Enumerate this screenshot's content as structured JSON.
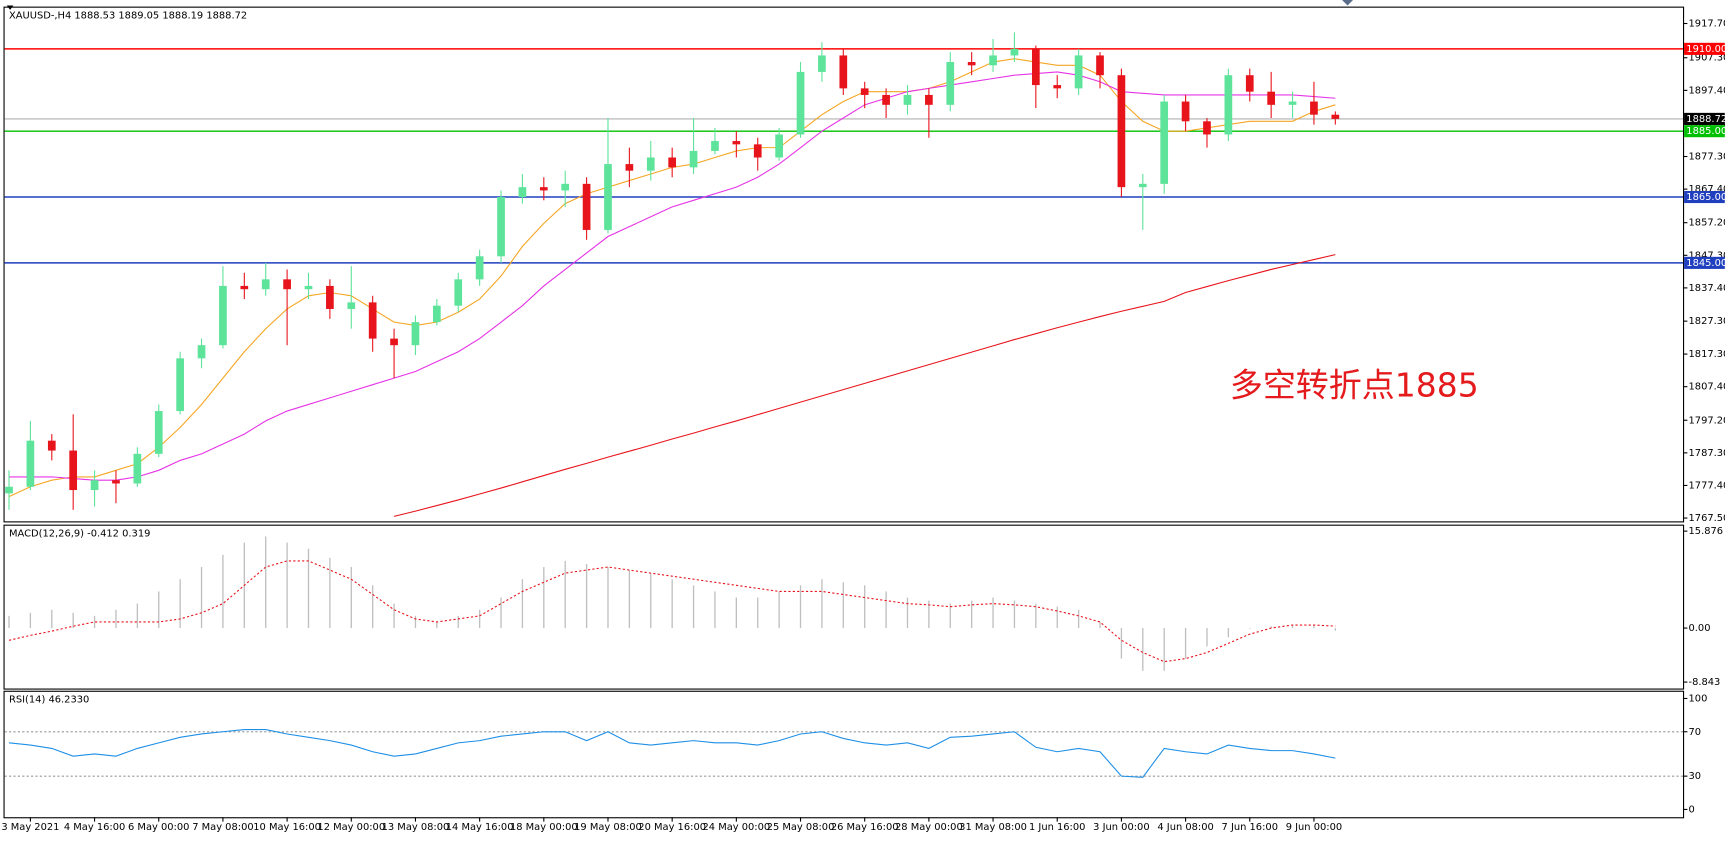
{
  "chart_data": [
    {
      "type": "candlestick",
      "title": "XAUUSD-,H4 1888.53 1889.05 1888.19 1888.72",
      "categories": [
        null,
        "3 May 2021",
        null,
        null,
        "4 May 16:00",
        null,
        null,
        "6 May 00:00",
        null,
        null,
        "7 May 08:00",
        null,
        null,
        "10 May 16:00",
        null,
        null,
        "12 May 00:00",
        null,
        null,
        "13 May 08:00",
        null,
        null,
        "14 May 16:00",
        null,
        null,
        "18 May 00:00",
        null,
        null,
        "19 May 08:00",
        null,
        null,
        "20 May 16:00",
        null,
        null,
        "24 May 00:00",
        null,
        null,
        "25 May 08:00",
        null,
        null,
        "26 May 16:00",
        null,
        null,
        "28 May 00:00",
        null,
        null,
        "31 May 08:00",
        null,
        null,
        "1 Jun 16:00",
        null,
        null,
        "3 Jun 00:00",
        null,
        null,
        "4 Jun 08:00",
        null,
        null,
        "7 Jun 16:00",
        null,
        null,
        "9 Jun 00:00",
        null
      ],
      "open": [
        1775,
        1777,
        1791,
        1788,
        1776,
        1779,
        1778,
        1787,
        1800,
        1816,
        1820,
        1838,
        1837,
        1840,
        1837,
        1838,
        1831,
        1833,
        1822,
        1820,
        1827,
        1832,
        1840,
        1847,
        1865,
        1868,
        1867,
        1869,
        1855,
        1875,
        1873,
        1877,
        1874,
        1879,
        1882,
        1881,
        1877,
        1884,
        1903,
        1908,
        1898,
        1896,
        1893,
        1896,
        1893,
        1906,
        1905,
        1908,
        1910,
        1899,
        1898,
        1908,
        1902,
        1868,
        1869,
        1894,
        1888,
        1884,
        1902,
        1897,
        1893,
        1894,
        1890
      ],
      "high": [
        1782,
        1797,
        1793,
        1799,
        1782,
        1782,
        1789,
        1802,
        1818,
        1822,
        1844,
        1842,
        1845,
        1843,
        1842,
        1840,
        1844,
        1835,
        1825,
        1829,
        1834,
        1842,
        1849,
        1867,
        1872,
        1871,
        1873,
        1871,
        1889,
        1880,
        1882,
        1880,
        1889,
        1886,
        1885,
        1883,
        1886,
        1906,
        1912,
        1910,
        1900,
        1898,
        1899,
        1898,
        1909,
        1909,
        1913,
        1915,
        1911,
        1902,
        1910,
        1909,
        1904,
        1872,
        1896,
        1896,
        1889,
        1904,
        1904,
        1903,
        1897,
        1900,
        1891
      ],
      "low": [
        1770,
        1776,
        1785,
        1770,
        1771,
        1772,
        1777,
        1786,
        1799,
        1813,
        1819,
        1834,
        1835,
        1820,
        1834,
        1828,
        1825,
        1818,
        1810,
        1817,
        1826,
        1830,
        1838,
        1845,
        1863,
        1864,
        1862,
        1852,
        1854,
        1868,
        1870,
        1871,
        1872,
        1878,
        1877,
        1873,
        1876,
        1883,
        1900,
        1896,
        1892,
        1889,
        1890,
        1883,
        1891,
        1902,
        1903,
        1906,
        1892,
        1895,
        1896,
        1898,
        1865,
        1855,
        1866,
        1885,
        1880,
        1882,
        1894,
        1889,
        1889,
        1887,
        1887
      ],
      "close": [
        1777,
        1791,
        1788,
        1776,
        1779,
        1778,
        1787,
        1800,
        1816,
        1820,
        1838,
        1837,
        1840,
        1837,
        1838,
        1831,
        1833,
        1822,
        1820,
        1827,
        1832,
        1840,
        1847,
        1865,
        1868,
        1867,
        1869,
        1855,
        1875,
        1873,
        1877,
        1874,
        1879,
        1882,
        1881,
        1877,
        1884,
        1903,
        1908,
        1898,
        1896,
        1893,
        1896,
        1893,
        1906,
        1905,
        1908,
        1910,
        1899,
        1898,
        1908,
        1902,
        1868,
        1869,
        1894,
        1888,
        1884,
        1902,
        1897,
        1893,
        1894,
        1890,
        1888.72
      ],
      "up_color": "#5de39a",
      "down_color": "#e8141c",
      "series": [
        {
          "color": "#f5a623",
          "values": [
            1774,
            1777,
            1779,
            1780,
            1780,
            1782,
            1784,
            1789,
            1795,
            1802,
            1810,
            1818,
            1825,
            1831,
            1835,
            1836,
            1835,
            1831,
            1827,
            1826,
            1827,
            1830,
            1834,
            1841,
            1850,
            1857,
            1863,
            1866,
            1868,
            1870,
            1872,
            1874,
            1875,
            1877,
            1879,
            1880,
            1880,
            1885,
            1890,
            1894,
            1897,
            1897,
            1897,
            1898,
            1900,
            1903,
            1906,
            1907,
            1906,
            1905,
            1905,
            1902,
            1894,
            1888,
            1885,
            1885,
            1886,
            1887,
            1888,
            1888,
            1888,
            1891,
            1893
          ]
        },
        {
          "color": "#e633e6",
          "values": [
            1780,
            1780,
            1780,
            1779.5,
            1779,
            1779,
            1780,
            1782,
            1785,
            1787,
            1790,
            1793,
            1797,
            1800,
            1802,
            1804,
            1806,
            1808,
            1810,
            1812,
            1815,
            1818,
            1822,
            1827,
            1832,
            1838,
            1843,
            1848,
            1853,
            1856,
            1859,
            1862,
            1864,
            1866,
            1868,
            1871,
            1875,
            1880,
            1885,
            1889,
            1893,
            1895,
            1897,
            1898,
            1899,
            1900,
            1901,
            1902,
            1902.5,
            1903,
            1902,
            1900,
            1897,
            1896.5,
            1896,
            1896,
            1896,
            1896,
            1896,
            1896,
            1896,
            1895.5,
            1895
          ]
        },
        {
          "color": "#e8141c",
          "values": [
            null,
            null,
            null,
            null,
            null,
            null,
            null,
            null,
            null,
            null,
            null,
            null,
            null,
            null,
            null,
            null,
            null,
            null,
            1768,
            1769.6,
            1771.3,
            1773,
            1774.8,
            1776.6,
            1778.5,
            1780.4,
            1782.3,
            1784.1,
            1786,
            1787.8,
            1789.6,
            1791.5,
            1793.3,
            1795.2,
            1797,
            1798.9,
            1800.8,
            1802.7,
            1804.6,
            1806.5,
            1808.4,
            1810.3,
            1812.2,
            1814.1,
            1816,
            1817.9,
            1819.8,
            1821.7,
            1823.5,
            1825.3,
            1827,
            1828.7,
            1830.3,
            1831.8,
            1833.3,
            1836,
            1837.8,
            1839.6,
            1841.3,
            1843,
            1844.5,
            1846,
            1847.5
          ]
        }
      ],
      "ylim": [
        1766.5,
        1922.5
      ],
      "yticks": [
        {
          "value": 1917.7,
          "label": "1917.70"
        },
        {
          "value": 1907.3,
          "label": "1907.30"
        },
        {
          "value": 1897.4,
          "label": "1897.40"
        },
        {
          "value": 1887.3,
          "label": "1887.30"
        },
        {
          "value": 1877.3,
          "label": "1877.30"
        },
        {
          "value": 1867.4,
          "label": "1867.40"
        },
        {
          "value": 1857.2,
          "label": "1857.20"
        },
        {
          "value": 1847.3,
          "label": "1847.30"
        },
        {
          "value": 1837.4,
          "label": "1837.40"
        },
        {
          "value": 1827.3,
          "label": "1827.30"
        },
        {
          "value": 1817.3,
          "label": "1817.30"
        },
        {
          "value": 1807.4,
          "label": "1807.40"
        },
        {
          "value": 1797.2,
          "label": "1797.20"
        },
        {
          "value": 1787.3,
          "label": "1787.30"
        },
        {
          "value": 1777.4,
          "label": "1777.40"
        },
        {
          "value": 1767.5,
          "label": "1767.50"
        }
      ],
      "levels": [
        {
          "value": 1910,
          "label": "1910.00",
          "color": "#ff0000"
        },
        {
          "value": 1885,
          "label": "1885.00",
          "color": "#00c000"
        },
        {
          "value": 1865,
          "label": "1865.00",
          "color": "#1f3fbf"
        },
        {
          "value": 1845,
          "label": "1845.00",
          "color": "#1f3fbf"
        }
      ],
      "last_price": {
        "value": 1888.72,
        "label": "1888.72",
        "color": "#b0b0b0"
      },
      "annotation": {
        "text": "多空转折点1885",
        "color": "#e41a1c"
      }
    },
    {
      "type": "macd",
      "title": "MACD(12,26,9) -0.412 0.319",
      "values": [
        2,
        2.5,
        3,
        2.5,
        2,
        3,
        4,
        6,
        8,
        10,
        12,
        14,
        15,
        14,
        13,
        11.5,
        10,
        7,
        4,
        2,
        1,
        2,
        3,
        5,
        8,
        10,
        11,
        10.5,
        10,
        9.5,
        9,
        8,
        7,
        6,
        5,
        5,
        6,
        7,
        8,
        7.5,
        7,
        6,
        5,
        4.5,
        4,
        4.5,
        5,
        4.5,
        4,
        3.5,
        3,
        1,
        -5,
        -7,
        -7,
        -5,
        -3,
        -1.5,
        0,
        0.3,
        0.5,
        0.4,
        -0.412
      ],
      "color": "#bfbfbf",
      "signal": {
        "color": "#e8141c",
        "values": [
          -2,
          -1.2,
          -0.5,
          0.3,
          1,
          1,
          1,
          1,
          1.5,
          2.5,
          4,
          7,
          10,
          11,
          11,
          9.5,
          8,
          5.5,
          3,
          1.5,
          1,
          1.5,
          2,
          4,
          6,
          7.5,
          9,
          9.5,
          10,
          9.5,
          9,
          8.5,
          8,
          7.5,
          7,
          6.5,
          6,
          6,
          6,
          5.5,
          5,
          4.5,
          4,
          3.8,
          3.5,
          3.8,
          4,
          3.8,
          3.5,
          2.8,
          2,
          1,
          -2,
          -4,
          -5.5,
          -5,
          -4,
          -2.5,
          -1,
          0,
          0.5,
          0.5,
          0.319
        ]
      },
      "ylim": [
        -9.9,
        16.76
      ],
      "yticks": [
        15.876,
        {
          "value": 0,
          "label": "0.00"
        },
        -8.843
      ]
    },
    {
      "type": "line",
      "title": "RSI(14) 46.2330",
      "series": [
        {
          "color": "#1e8fe6",
          "values": [
            60,
            58,
            55,
            48,
            50,
            48,
            55,
            60,
            65,
            68,
            70,
            72,
            72,
            68,
            65,
            62,
            58,
            52,
            48,
            50,
            55,
            60,
            62,
            66,
            68,
            70,
            70,
            62,
            70,
            60,
            58,
            60,
            62,
            60,
            60,
            58,
            62,
            68,
            70,
            64,
            60,
            58,
            60,
            55,
            65,
            66,
            68,
            70,
            56,
            52,
            55,
            52,
            30,
            29,
            55,
            52,
            50,
            58,
            55,
            53,
            53,
            50,
            46.233
          ]
        }
      ],
      "ylim": [
        -7,
        106
      ],
      "yticks": [
        100,
        70,
        30,
        0
      ],
      "levels": [
        70,
        30
      ]
    }
  ]
}
